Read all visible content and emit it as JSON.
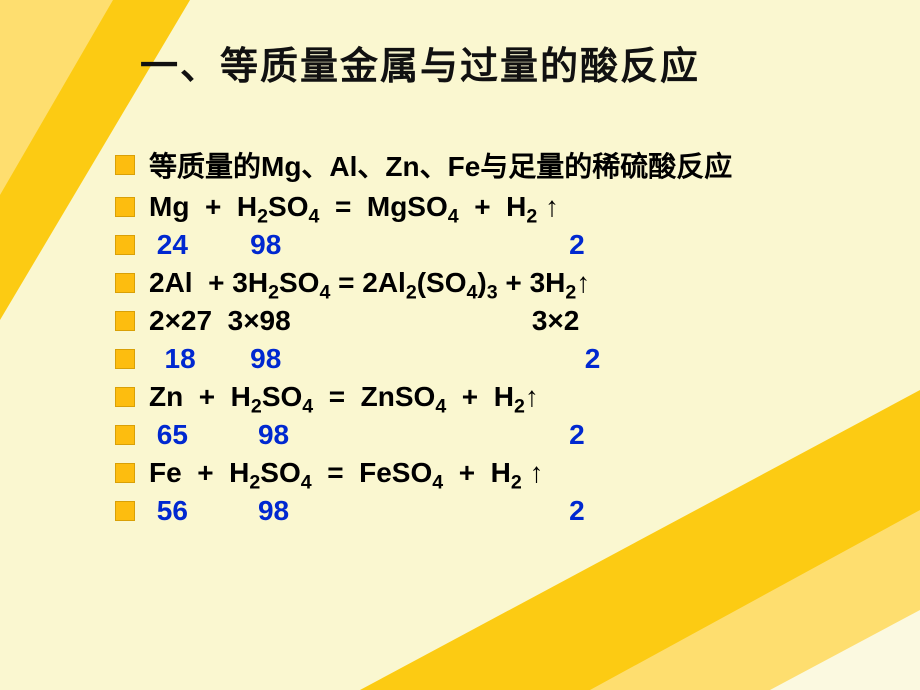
{
  "styling": {
    "slide_bg": "#faf7d0",
    "corner_outer": "#fccb13",
    "corner_inner": "#fede6f",
    "corner_light": "#fbf9e0",
    "bullet_color": "#fdbd0f",
    "blue_text": "#0028d0",
    "title_fontsize": 38,
    "body_fontsize": 28
  },
  "title": "一、等质量金属与过量的酸反应",
  "lines": {
    "l1": "等质量的Mg、Al、Zn、Fe与足量的稀硫酸反应",
    "l2_a": "Mg  +  H",
    "l2_b": "SO",
    "l2_c": "  =  MgSO",
    "l2_d": "  +  H",
    "l2_e": " ↑",
    "l3": " 24        98                                     2",
    "l4_a": "2Al  + 3H",
    "l4_b": "SO",
    "l4_c": " = 2Al",
    "l4_d": "(SO",
    "l4_e": ")",
    "l4_f": " + 3H",
    "l4_g": "↑",
    "l5": "2×27  3×98                               3×2",
    "l6": "  18       98                                       2",
    "l7_a": "Zn  +  H",
    "l7_b": "SO",
    "l7_c": "  =  ZnSO",
    "l7_d": "  +  H",
    "l7_e": "↑",
    "l8": " 65         98                                    2",
    "l9_a": "Fe  +  H",
    "l9_b": "SO",
    "l9_c": "  =  FeSO",
    "l9_d": "  +  H",
    "l9_e": " ↑",
    "l10": " 56         98                                    2"
  }
}
